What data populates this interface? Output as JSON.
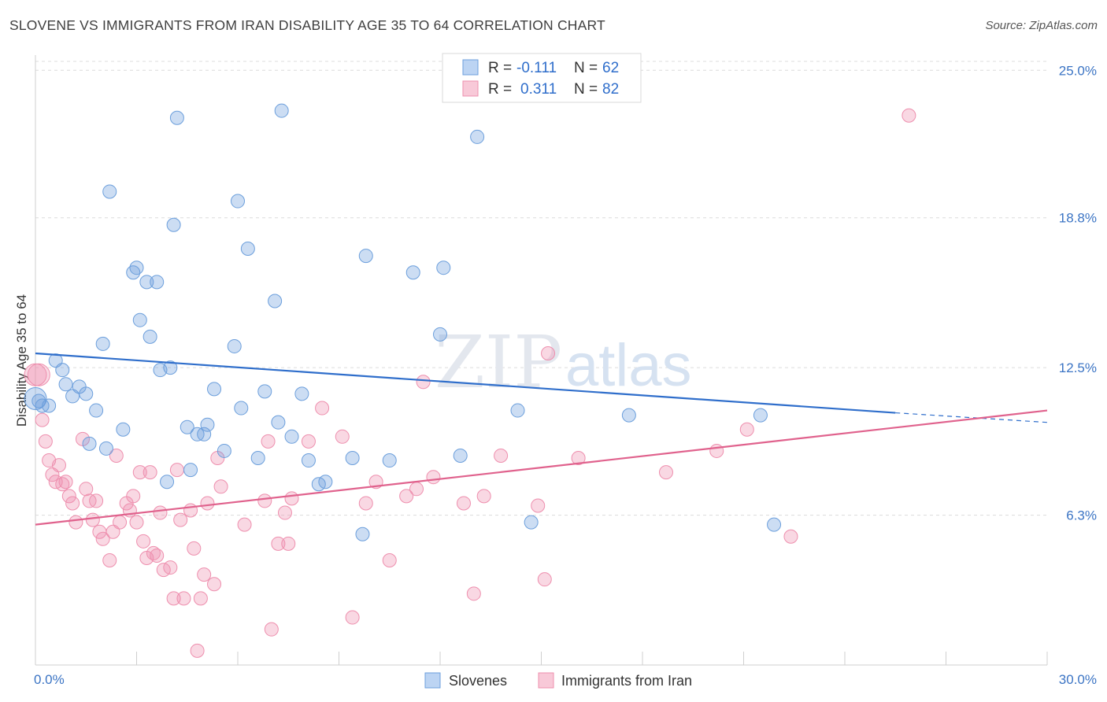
{
  "header": {
    "title": "SLOVENE VS IMMIGRANTS FROM IRAN DISABILITY AGE 35 TO 64 CORRELATION CHART",
    "source": "Source: ZipAtlas.com"
  },
  "watermark": {
    "zip": "ZIP",
    "atlas": "atlas"
  },
  "legend": {
    "rows": [
      {
        "r_label": "R =",
        "r_value": "-0.111",
        "n_label": "N =",
        "n_value": "62"
      },
      {
        "r_label": "R =",
        "r_value": "0.311",
        "n_label": "N =",
        "n_value": "82"
      }
    ]
  },
  "bottom_legend": {
    "items": [
      "Slovenes",
      "Immigrants from Iran"
    ]
  },
  "chart_data": {
    "type": "scatter",
    "title": "SLOVENE VS IMMIGRANTS FROM IRAN DISABILITY AGE 35 TO 64 CORRELATION CHART",
    "ylabel": "Disability Age 35 to 64",
    "xlabel": "",
    "xlim": [
      0,
      30
    ],
    "ylim": [
      0,
      26.3
    ],
    "x_tick_labels": [
      "0.0%",
      "30.0%"
    ],
    "y_ticks": [
      6.3,
      12.5,
      18.8,
      25.0
    ],
    "y_tick_labels": [
      "6.3%",
      "12.5%",
      "18.8%",
      "25.0%"
    ],
    "grid": true,
    "colors": {
      "slovenes": "#6c9fdc",
      "iran": "#ee8fae",
      "slovenes_line": "#2f6ecb",
      "iran_line": "#e0628d"
    },
    "series": [
      {
        "name": "Slovenes",
        "r": -0.111,
        "n": 62,
        "trend": {
          "x0": 0,
          "y0": 13.1,
          "x1": 25.5,
          "y1": 10.6,
          "dash_x1": 30,
          "dash_y1": 10.2
        },
        "points": [
          [
            0.1,
            11.1
          ],
          [
            0.4,
            10.9
          ],
          [
            0.6,
            12.8
          ],
          [
            0.8,
            12.4
          ],
          [
            0.9,
            11.8
          ],
          [
            1.1,
            11.3
          ],
          [
            1.3,
            11.7
          ],
          [
            1.5,
            11.4
          ],
          [
            1.6,
            9.3
          ],
          [
            1.8,
            10.7
          ],
          [
            2.0,
            13.5
          ],
          [
            2.1,
            9.1
          ],
          [
            2.2,
            19.9
          ],
          [
            2.6,
            9.9
          ],
          [
            2.9,
            16.5
          ],
          [
            3.0,
            16.7
          ],
          [
            3.1,
            14.5
          ],
          [
            3.3,
            16.1
          ],
          [
            3.4,
            13.8
          ],
          [
            3.6,
            16.1
          ],
          [
            3.7,
            12.4
          ],
          [
            3.9,
            7.7
          ],
          [
            4.0,
            12.5
          ],
          [
            4.1,
            18.5
          ],
          [
            4.2,
            23.0
          ],
          [
            4.5,
            10.0
          ],
          [
            4.6,
            8.2
          ],
          [
            4.8,
            9.7
          ],
          [
            5.0,
            9.7
          ],
          [
            5.1,
            10.1
          ],
          [
            5.3,
            11.6
          ],
          [
            5.6,
            9.0
          ],
          [
            5.9,
            13.4
          ],
          [
            6.0,
            19.5
          ],
          [
            6.1,
            10.8
          ],
          [
            6.3,
            17.5
          ],
          [
            6.6,
            8.7
          ],
          [
            6.8,
            11.5
          ],
          [
            7.1,
            15.3
          ],
          [
            7.2,
            10.2
          ],
          [
            7.3,
            23.3
          ],
          [
            7.6,
            9.6
          ],
          [
            7.9,
            11.4
          ],
          [
            8.1,
            8.6
          ],
          [
            8.4,
            7.6
          ],
          [
            8.6,
            7.7
          ],
          [
            9.4,
            8.7
          ],
          [
            9.7,
            5.5
          ],
          [
            9.8,
            17.2
          ],
          [
            10.5,
            8.6
          ],
          [
            11.2,
            16.5
          ],
          [
            12.0,
            13.9
          ],
          [
            12.1,
            16.7
          ],
          [
            12.6,
            8.8
          ],
          [
            13.1,
            22.2
          ],
          [
            14.3,
            10.7
          ],
          [
            14.7,
            6.0
          ],
          [
            17.6,
            10.5
          ],
          [
            21.5,
            10.5
          ],
          [
            21.9,
            5.9
          ],
          [
            0.0,
            11.2
          ],
          [
            0.2,
            10.9
          ]
        ]
      },
      {
        "name": "Immigrants from Iran",
        "r": 0.311,
        "n": 82,
        "trend": {
          "x0": 0,
          "y0": 5.9,
          "x1": 30,
          "y1": 10.7
        },
        "points": [
          [
            0.0,
            12.2
          ],
          [
            0.2,
            10.3
          ],
          [
            0.3,
            9.4
          ],
          [
            0.4,
            8.6
          ],
          [
            0.5,
            8.0
          ],
          [
            0.6,
            7.7
          ],
          [
            0.7,
            8.4
          ],
          [
            0.8,
            7.6
          ],
          [
            0.9,
            7.7
          ],
          [
            1.0,
            7.1
          ],
          [
            1.1,
            6.8
          ],
          [
            1.2,
            6.0
          ],
          [
            1.4,
            9.5
          ],
          [
            1.5,
            7.4
          ],
          [
            1.6,
            6.9
          ],
          [
            1.7,
            6.1
          ],
          [
            1.8,
            6.9
          ],
          [
            1.9,
            5.6
          ],
          [
            2.0,
            5.3
          ],
          [
            2.2,
            4.4
          ],
          [
            2.3,
            5.6
          ],
          [
            2.4,
            8.8
          ],
          [
            2.5,
            6.0
          ],
          [
            2.7,
            6.8
          ],
          [
            2.8,
            6.5
          ],
          [
            2.9,
            7.1
          ],
          [
            3.0,
            6.0
          ],
          [
            3.1,
            8.1
          ],
          [
            3.2,
            5.2
          ],
          [
            3.3,
            4.5
          ],
          [
            3.4,
            8.1
          ],
          [
            3.5,
            4.7
          ],
          [
            3.6,
            4.6
          ],
          [
            3.7,
            6.4
          ],
          [
            3.8,
            4.0
          ],
          [
            4.0,
            4.1
          ],
          [
            4.1,
            2.8
          ],
          [
            4.2,
            8.2
          ],
          [
            4.3,
            6.1
          ],
          [
            4.4,
            2.8
          ],
          [
            4.6,
            6.5
          ],
          [
            4.7,
            4.9
          ],
          [
            4.8,
            0.6
          ],
          [
            4.9,
            2.8
          ],
          [
            5.0,
            3.8
          ],
          [
            5.1,
            6.8
          ],
          [
            5.3,
            3.4
          ],
          [
            5.4,
            8.7
          ],
          [
            5.5,
            7.5
          ],
          [
            6.2,
            5.9
          ],
          [
            6.8,
            6.9
          ],
          [
            6.9,
            9.4
          ],
          [
            7.0,
            1.5
          ],
          [
            7.2,
            5.1
          ],
          [
            7.4,
            6.4
          ],
          [
            7.5,
            5.1
          ],
          [
            7.6,
            7.0
          ],
          [
            8.1,
            9.4
          ],
          [
            8.5,
            10.8
          ],
          [
            9.1,
            9.6
          ],
          [
            9.4,
            2.0
          ],
          [
            9.8,
            6.8
          ],
          [
            10.1,
            7.7
          ],
          [
            10.5,
            4.4
          ],
          [
            11.0,
            7.1
          ],
          [
            11.3,
            7.4
          ],
          [
            11.5,
            11.9
          ],
          [
            11.8,
            7.9
          ],
          [
            12.7,
            6.8
          ],
          [
            13.0,
            3.0
          ],
          [
            13.3,
            7.1
          ],
          [
            13.8,
            8.8
          ],
          [
            14.9,
            6.7
          ],
          [
            15.1,
            3.6
          ],
          [
            15.2,
            13.1
          ],
          [
            16.1,
            8.7
          ],
          [
            18.7,
            8.1
          ],
          [
            20.2,
            9.0
          ],
          [
            21.1,
            9.9
          ],
          [
            22.4,
            5.4
          ],
          [
            25.9,
            23.1
          ],
          [
            0.1,
            12.2
          ]
        ]
      }
    ]
  }
}
